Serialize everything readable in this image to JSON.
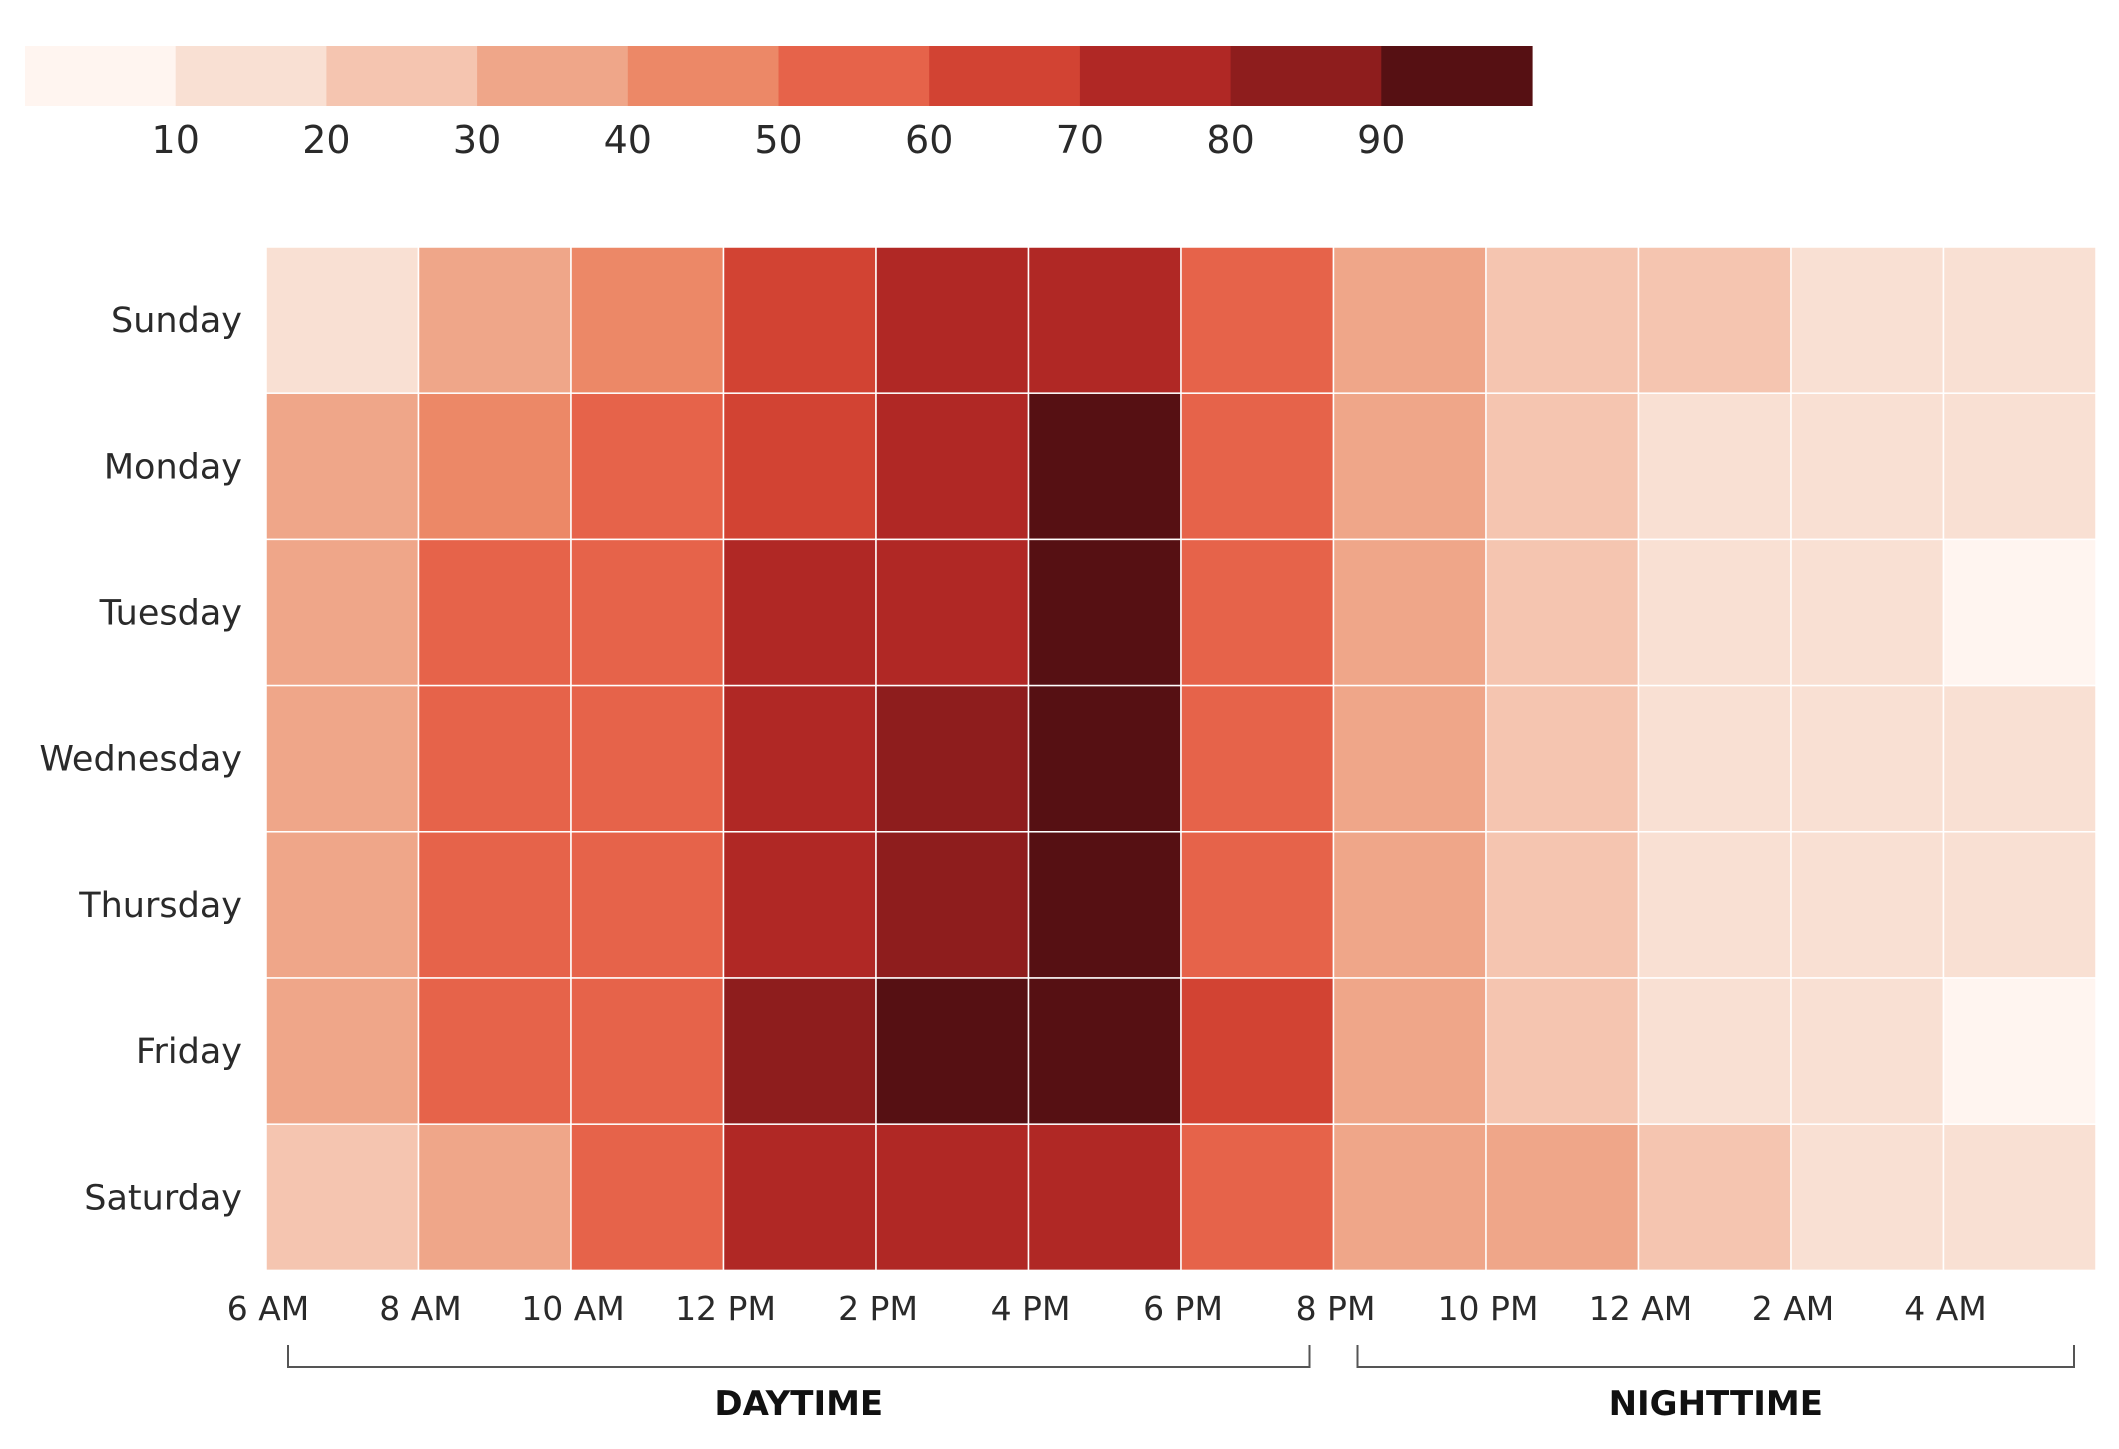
{
  "chart_data": {
    "type": "heatmap",
    "title": "",
    "xlabel": "",
    "ylabel": "",
    "rows": [
      "Sunday",
      "Monday",
      "Tuesday",
      "Wednesday",
      "Thursday",
      "Friday",
      "Saturday"
    ],
    "columns": [
      "6 AM",
      "8 AM",
      "10 AM",
      "12 PM",
      "2 PM",
      "4 PM",
      "6 PM",
      "8 PM",
      "10 PM",
      "12 AM",
      "2 AM",
      "4 AM"
    ],
    "values": [
      [
        15,
        35,
        45,
        65,
        75,
        75,
        55,
        35,
        25,
        25,
        15,
        15
      ],
      [
        35,
        45,
        55,
        65,
        75,
        95,
        55,
        35,
        25,
        15,
        15,
        15
      ],
      [
        35,
        55,
        55,
        75,
        75,
        95,
        55,
        35,
        25,
        15,
        15,
        5
      ],
      [
        35,
        55,
        55,
        75,
        85,
        95,
        55,
        35,
        25,
        15,
        15,
        15
      ],
      [
        35,
        55,
        55,
        75,
        85,
        95,
        55,
        35,
        25,
        15,
        15,
        15
      ],
      [
        35,
        55,
        55,
        85,
        95,
        95,
        65,
        35,
        25,
        15,
        15,
        5
      ],
      [
        25,
        35,
        55,
        75,
        75,
        75,
        55,
        35,
        35,
        25,
        15,
        15
      ]
    ],
    "legend": {
      "ticks": [
        "10",
        "20",
        "30",
        "40",
        "50",
        "60",
        "70",
        "80",
        "90"
      ],
      "bins": [
        0,
        10,
        20,
        30,
        40,
        50,
        60,
        70,
        80,
        90,
        100
      ]
    },
    "color_scale": [
      "#fff5f0",
      "#f9e0d3",
      "#f5c5b0",
      "#efa689",
      "#ec8867",
      "#e6634a",
      "#d24333",
      "#b02825",
      "#8e1d1d",
      "#561013"
    ],
    "grid_line_color": "#ffffff",
    "period_groups": [
      {
        "label": "DAYTIME",
        "from": "6 AM",
        "to": "8 PM"
      },
      {
        "label": "NIGHTTIME",
        "from": "8 PM",
        "to": "6 AM"
      }
    ]
  }
}
